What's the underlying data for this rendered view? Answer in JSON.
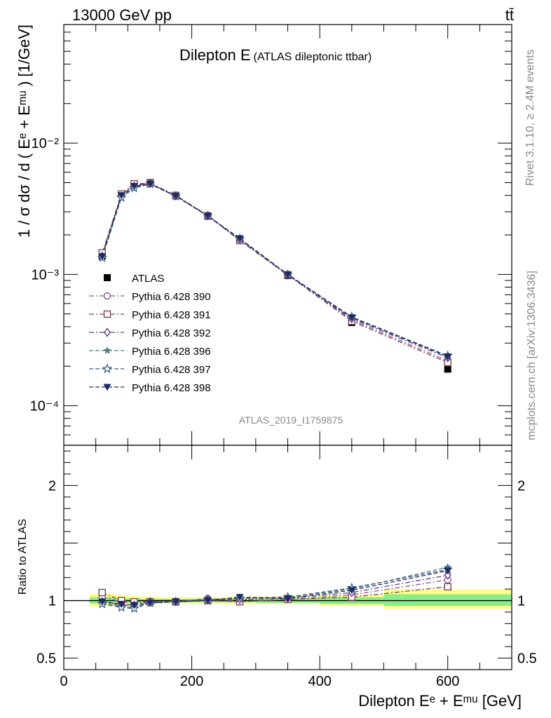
{
  "header": {
    "energy": "13000 GeV pp",
    "process": "tt̄"
  },
  "side_texts": {
    "rivet": "Rivet 3.1.10, ≥ 2.4M events",
    "mcplots": "mcplots.cern.ch [arXiv:1306.3436]"
  },
  "chart_data": [
    {
      "type": "line",
      "title": "Dilepton E",
      "subtitle": "(ATLAS dileptonic ttbar)",
      "watermark": "ATLAS_2019_I1759875",
      "ylabel": "1 / σ dσ / d ( Eᵉ + Eᵐᵘ ) [1/GeV]",
      "yscale": "log",
      "xlim": [
        0,
        700
      ],
      "ylim": [
        5e-05,
        0.08
      ],
      "ytick_labels": [
        "10⁻⁴",
        "10⁻³",
        "10⁻²"
      ],
      "ytick_values": [
        0.0001,
        0.001,
        0.01
      ],
      "legend_position": "lower-left",
      "x": [
        60,
        90,
        110,
        135,
        175,
        225,
        275,
        350,
        450,
        600
      ],
      "data": {
        "name": "ATLAS",
        "values": [
          0.00138,
          0.0041,
          0.0049,
          0.005,
          0.004,
          0.00278,
          0.00183,
          0.00098,
          0.00043,
          0.00019
        ]
      },
      "series": [
        {
          "name": "Pythia 6.428 390",
          "color": "#8a5a8a",
          "marker": "circle-open",
          "dash": "dash-dot",
          "values": [
            0.00142,
            0.00405,
            0.0048,
            0.0049,
            0.004,
            0.00282,
            0.00182,
            0.00099,
            0.00045,
            0.00022
          ]
        },
        {
          "name": "Pythia 6.428 391",
          "color": "#7a4650",
          "marker": "square-open",
          "dash": "dash-dot",
          "values": [
            0.00146,
            0.0041,
            0.0049,
            0.00495,
            0.004,
            0.00279,
            0.00181,
            0.00099,
            0.00044,
            0.000213
          ]
        },
        {
          "name": "Pythia 6.428 392",
          "color": "#5a3a8a",
          "marker": "diamond-open",
          "dash": "dash-dot",
          "values": [
            0.00138,
            0.00395,
            0.0047,
            0.00495,
            0.00395,
            0.0028,
            0.00184,
            0.00099,
            0.00046,
            0.000232
          ]
        },
        {
          "name": "Pythia 6.428 396",
          "color": "#4e8080",
          "marker": "star-filled",
          "dash": "dashed",
          "values": [
            0.00135,
            0.0039,
            0.0046,
            0.0049,
            0.00395,
            0.0028,
            0.00186,
            0.001,
            0.00047,
            0.000238
          ]
        },
        {
          "name": "Pythia 6.428 397",
          "color": "#3a5a80",
          "marker": "star-open",
          "dash": "dashed",
          "values": [
            0.00134,
            0.00385,
            0.00455,
            0.00488,
            0.00394,
            0.00279,
            0.00187,
            0.001,
            0.000475,
            0.00024
          ]
        },
        {
          "name": "Pythia 6.428 398",
          "color": "#1f2a60",
          "marker": "triangle-down",
          "dash": "dashed",
          "values": [
            0.00137,
            0.004,
            0.0047,
            0.00488,
            0.00395,
            0.00279,
            0.00188,
            0.001,
            0.00047,
            0.000237
          ]
        }
      ]
    },
    {
      "type": "line",
      "ylabel": "Ratio to ATLAS",
      "xlabel": "Dilepton Eᵉ + Eᵐᵘ [GeV]",
      "xlim": [
        0,
        700
      ],
      "ylim": [
        0.4,
        2.35
      ],
      "xtick_labels": [
        "0",
        "200",
        "400",
        "600"
      ],
      "xtick_values": [
        0,
        200,
        400,
        600
      ],
      "ytick_labels": [
        "0.5",
        "1",
        "2"
      ],
      "ytick_values": [
        0.5,
        1,
        2
      ],
      "x": [
        60,
        90,
        110,
        135,
        175,
        225,
        275,
        350,
        450,
        600
      ],
      "bands": {
        "bin_edges": [
          40,
          80,
          100,
          120,
          150,
          200,
          250,
          300,
          400,
          500,
          700
        ],
        "outer_yellow": [
          [
            0.95,
            1.06
          ],
          [
            0.96,
            1.05
          ],
          [
            0.965,
            1.04
          ],
          [
            0.97,
            1.035
          ],
          [
            0.975,
            1.03
          ],
          [
            0.975,
            1.03
          ],
          [
            0.97,
            1.035
          ],
          [
            0.97,
            1.035
          ],
          [
            0.955,
            1.05
          ],
          [
            0.93,
            1.1
          ]
        ],
        "inner_green": [
          [
            0.975,
            1.03
          ],
          [
            0.98,
            1.02
          ],
          [
            0.98,
            1.02
          ],
          [
            0.985,
            1.015
          ],
          [
            0.985,
            1.015
          ],
          [
            0.985,
            1.015
          ],
          [
            0.985,
            1.015
          ],
          [
            0.98,
            1.02
          ],
          [
            0.97,
            1.03
          ],
          [
            0.955,
            1.055
          ]
        ]
      },
      "series": [
        {
          "name": "Pythia 6.428 390",
          "values": [
            1.03,
            0.99,
            0.98,
            0.98,
            0.99,
            1.02,
            0.99,
            1.01,
            1.05,
            1.18
          ]
        },
        {
          "name": "Pythia 6.428 391",
          "values": [
            1.07,
            1.0,
            0.99,
            0.99,
            0.99,
            1.0,
            0.99,
            1.01,
            1.03,
            1.12
          ]
        },
        {
          "name": "Pythia 6.428 392",
          "values": [
            0.99,
            0.96,
            0.96,
            0.99,
            0.99,
            1.01,
            1.01,
            1.02,
            1.07,
            1.22
          ]
        },
        {
          "name": "Pythia 6.428 396",
          "values": [
            0.98,
            0.95,
            0.94,
            0.98,
            0.99,
            1.01,
            1.02,
            1.03,
            1.1,
            1.29
          ]
        },
        {
          "name": "Pythia 6.428 397",
          "values": [
            0.97,
            0.94,
            0.93,
            0.98,
            0.99,
            1.0,
            1.02,
            1.03,
            1.11,
            1.27
          ]
        },
        {
          "name": "Pythia 6.428 398",
          "values": [
            0.99,
            0.97,
            0.96,
            0.98,
            0.99,
            1.0,
            1.03,
            1.02,
            1.09,
            1.26
          ]
        }
      ]
    }
  ]
}
